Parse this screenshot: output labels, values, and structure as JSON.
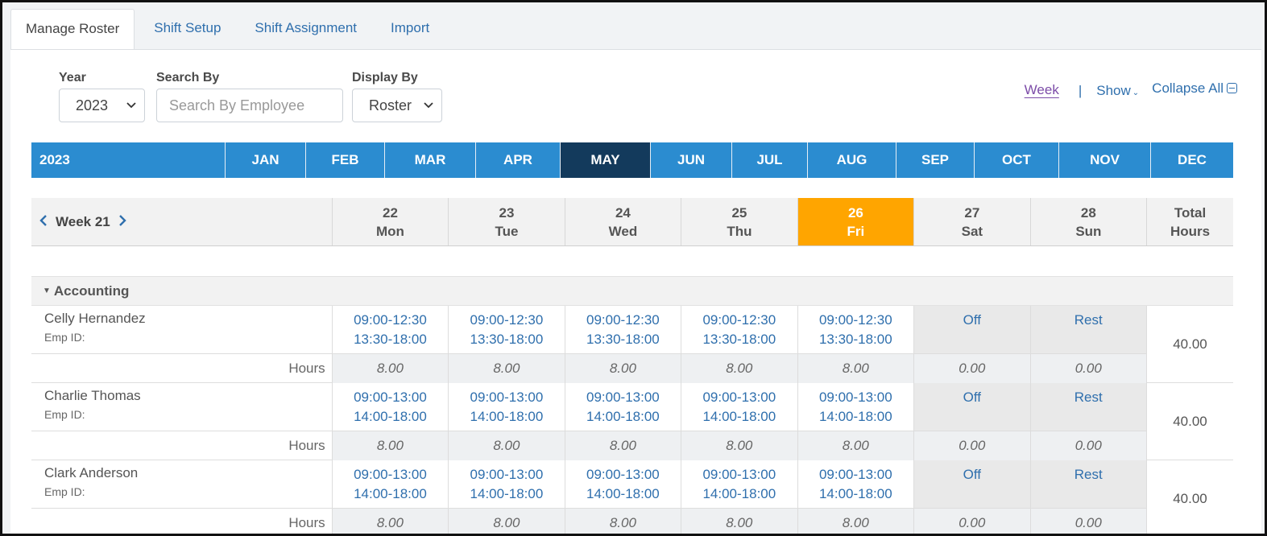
{
  "tabs": [
    {
      "label": "Manage Roster"
    },
    {
      "label": "Shift Setup"
    },
    {
      "label": "Shift Assignment"
    },
    {
      "label": "Import"
    }
  ],
  "filters": {
    "year_label": "Year",
    "year_value": "2023",
    "search_label": "Search By",
    "search_placeholder": "Search By Employee",
    "display_label": "Display By",
    "display_value": "Roster"
  },
  "view_links": {
    "week": "Week",
    "separator": "|",
    "show": "Show",
    "collapse_all": "Collapse All"
  },
  "month_bar": {
    "year": "2023",
    "months": [
      "JAN",
      "FEB",
      "MAR",
      "APR",
      "MAY",
      "JUN",
      "JUL",
      "AUG",
      "SEP",
      "OCT",
      "NOV",
      "DEC"
    ],
    "active_month": "MAY"
  },
  "week_header": {
    "label": "Week 21",
    "days": [
      {
        "date": "22",
        "day": "Mon"
      },
      {
        "date": "23",
        "day": "Tue"
      },
      {
        "date": "24",
        "day": "Wed"
      },
      {
        "date": "25",
        "day": "Thu"
      },
      {
        "date": "26",
        "day": "Fri"
      },
      {
        "date": "27",
        "day": "Sat"
      },
      {
        "date": "28",
        "day": "Sun"
      }
    ],
    "today_index": 4,
    "total_line1": "Total",
    "total_line2": "Hours"
  },
  "group": {
    "name": "Accounting"
  },
  "hours_label": "Hours",
  "employees": [
    {
      "name": "Celly Hernandez",
      "emp_id": "Emp ID:",
      "shifts": [
        [
          "09:00-12:30",
          "13:30-18:00"
        ],
        [
          "09:00-12:30",
          "13:30-18:00"
        ],
        [
          "09:00-12:30",
          "13:30-18:00"
        ],
        [
          "09:00-12:30",
          "13:30-18:00"
        ],
        [
          "09:00-12:30",
          "13:30-18:00"
        ],
        [
          "Off",
          ""
        ],
        [
          "Rest",
          ""
        ]
      ],
      "hours": [
        "8.00",
        "8.00",
        "8.00",
        "8.00",
        "8.00",
        "0.00",
        "0.00"
      ],
      "total": "40.00"
    },
    {
      "name": "Charlie Thomas",
      "emp_id": "Emp ID:",
      "shifts": [
        [
          "09:00-13:00",
          "14:00-18:00"
        ],
        [
          "09:00-13:00",
          "14:00-18:00"
        ],
        [
          "09:00-13:00",
          "14:00-18:00"
        ],
        [
          "09:00-13:00",
          "14:00-18:00"
        ],
        [
          "09:00-13:00",
          "14:00-18:00"
        ],
        [
          "Off",
          ""
        ],
        [
          "Rest",
          ""
        ]
      ],
      "hours": [
        "8.00",
        "8.00",
        "8.00",
        "8.00",
        "8.00",
        "0.00",
        "0.00"
      ],
      "total": "40.00"
    },
    {
      "name": "Clark Anderson",
      "emp_id": "Emp ID:",
      "shifts": [
        [
          "09:00-13:00",
          "14:00-18:00"
        ],
        [
          "09:00-13:00",
          "14:00-18:00"
        ],
        [
          "09:00-13:00",
          "14:00-18:00"
        ],
        [
          "09:00-13:00",
          "14:00-18:00"
        ],
        [
          "09:00-13:00",
          "14:00-18:00"
        ],
        [
          "Off",
          ""
        ],
        [
          "Rest",
          ""
        ]
      ],
      "hours": [
        "8.00",
        "8.00",
        "8.00",
        "8.00",
        "8.00",
        "0.00",
        "0.00"
      ],
      "total": "40.00"
    }
  ]
}
